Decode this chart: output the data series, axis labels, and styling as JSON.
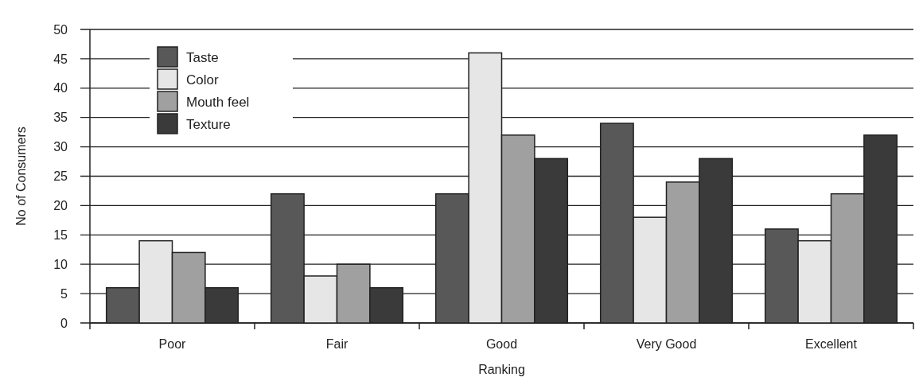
{
  "chart_data": {
    "type": "bar",
    "xlabel": "Ranking",
    "ylabel": "No of Consumers",
    "categories": [
      "Poor",
      "Fair",
      "Good",
      "Very Good",
      "Excellent"
    ],
    "series": [
      {
        "name": "Taste",
        "color": "#585858",
        "values": [
          6,
          22,
          22,
          34,
          16
        ]
      },
      {
        "name": "Color",
        "color": "#e6e6e6",
        "values": [
          14,
          8,
          46,
          18,
          14
        ]
      },
      {
        "name": "Mouth feel",
        "color": "#a0a0a0",
        "values": [
          12,
          10,
          32,
          24,
          22
        ]
      },
      {
        "name": "Texture",
        "color": "#3a3a3a",
        "values": [
          6,
          6,
          28,
          28,
          32
        ]
      }
    ],
    "ylim": [
      0,
      50
    ],
    "yticks": [
      0,
      5,
      10,
      15,
      20,
      25,
      30,
      35,
      40,
      45,
      50
    ],
    "grid": "y",
    "legend": "top left"
  }
}
